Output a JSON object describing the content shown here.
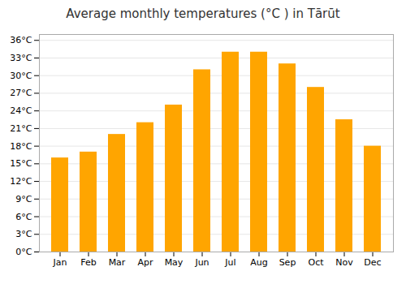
{
  "chart_data": {
    "type": "bar",
    "title": "Average monthly temperatures (°C ) in Tārūt",
    "categories": [
      "Jan",
      "Feb",
      "Mar",
      "Apr",
      "May",
      "Jun",
      "Jul",
      "Aug",
      "Sep",
      "Oct",
      "Nov",
      "Dec"
    ],
    "values": [
      16,
      17,
      20,
      22,
      25,
      31,
      34,
      34,
      32,
      28,
      22.5,
      18
    ],
    "color": "#FFA500",
    "ylim": [
      0,
      37
    ],
    "yticks": [
      {
        "value": 0,
        "label": "0°C"
      },
      {
        "value": 3,
        "label": "3°C"
      },
      {
        "value": 6,
        "label": "6°C"
      },
      {
        "value": 9,
        "label": "9°C"
      },
      {
        "value": 12,
        "label": "12°C"
      },
      {
        "value": 15,
        "label": "15°C"
      },
      {
        "value": 18,
        "label": "18°C"
      },
      {
        "value": 21,
        "label": "21°C"
      },
      {
        "value": 24,
        "label": "24°C"
      },
      {
        "value": 27,
        "label": "27°C"
      },
      {
        "value": 30,
        "label": "30°C"
      },
      {
        "value": 33,
        "label": "33°C"
      },
      {
        "value": 36,
        "label": "36°C"
      }
    ],
    "grid": true
  }
}
